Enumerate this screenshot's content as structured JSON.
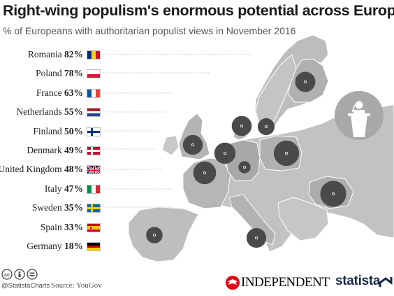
{
  "title": "Right-wing populism's enormous potential across Europe",
  "subtitle": "% of Europeans with authoritarian populist views in November 2016",
  "chart_data": {
    "type": "bubble-map",
    "series": [
      {
        "country": "Romania",
        "value": 82,
        "label": "82%"
      },
      {
        "country": "Poland",
        "value": 78,
        "label": "78%"
      },
      {
        "country": "France",
        "value": 63,
        "label": "63%"
      },
      {
        "country": "Netherlands",
        "value": 55,
        "label": "55%"
      },
      {
        "country": "Finland",
        "value": 50,
        "label": "50%"
      },
      {
        "country": "Denmark",
        "value": 49,
        "label": "49%"
      },
      {
        "country": "United Kingdom",
        "value": 48,
        "label": "48%"
      },
      {
        "country": "Italy",
        "value": 47,
        "label": "47%"
      },
      {
        "country": "Sweden",
        "value": 35,
        "label": "35%"
      },
      {
        "country": "Spain",
        "value": 33,
        "label": "33%"
      },
      {
        "country": "Germany",
        "value": 18,
        "label": "18%"
      }
    ],
    "unit": "%"
  },
  "footer": {
    "handle": "@StatistaCharts",
    "source": "Source: YouGov",
    "publisher": "INDEPENDENT",
    "brand": "statista"
  },
  "icons": [
    "creative-commons-icon",
    "attribution-icon",
    "no-derivatives-icon",
    "podium-speaker-icon",
    "independent-eagle-icon",
    "statista-logo-icon"
  ]
}
